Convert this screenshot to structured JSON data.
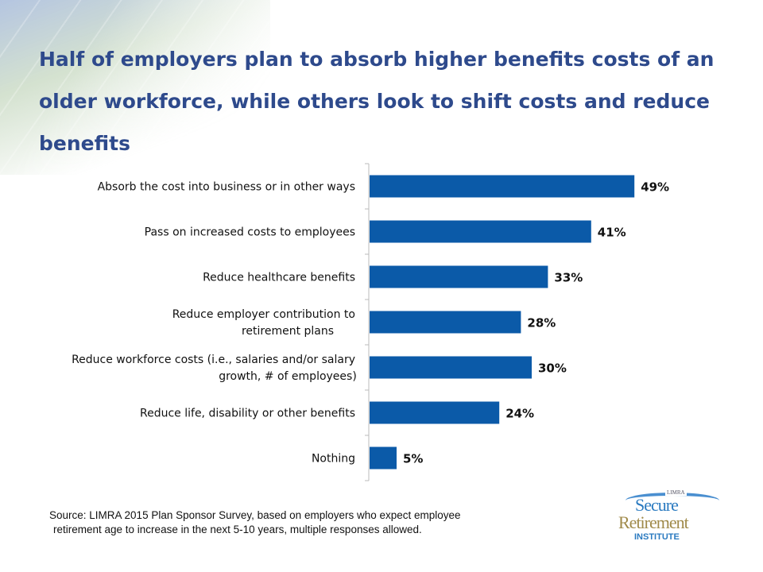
{
  "title": "Half of employers plan to absorb higher benefits costs of an older workforce, while others look to shift costs and reduce benefits",
  "chart_data": {
    "type": "bar",
    "orientation": "horizontal",
    "title": "Half of employers plan to absorb higher benefits costs of an older workforce, while others look to shift costs and reduce benefits",
    "categories": [
      [
        "Absorb the cost into business or in other ways"
      ],
      [
        "Pass on increased costs to employees"
      ],
      [
        "Reduce healthcare benefits"
      ],
      [
        "Reduce employer contribution to",
        "retirement plans"
      ],
      [
        "Reduce workforce costs (i.e., salaries and/or salary",
        "growth, # of employees)"
      ],
      [
        "Reduce life, disability or other benefits"
      ],
      [
        "Nothing"
      ]
    ],
    "values": [
      49,
      41,
      33,
      28,
      30,
      24,
      5
    ],
    "labels": [
      "49%",
      "41%",
      "33%",
      "28%",
      "30%",
      "24%",
      "5%"
    ],
    "xlim": [
      0,
      70
    ],
    "bar_color": "#0b5aa8",
    "grid": false
  },
  "source": [
    "Source: LIMRA  2015 Plan Sponsor Survey, based on employers who expect employee",
    "retirement age to increase in the next 5-10 years, multiple responses allowed."
  ],
  "logo": {
    "top": "LIMRA",
    "line1": "Secure",
    "line2": "Retirement",
    "line3": "INSTITUTE"
  }
}
